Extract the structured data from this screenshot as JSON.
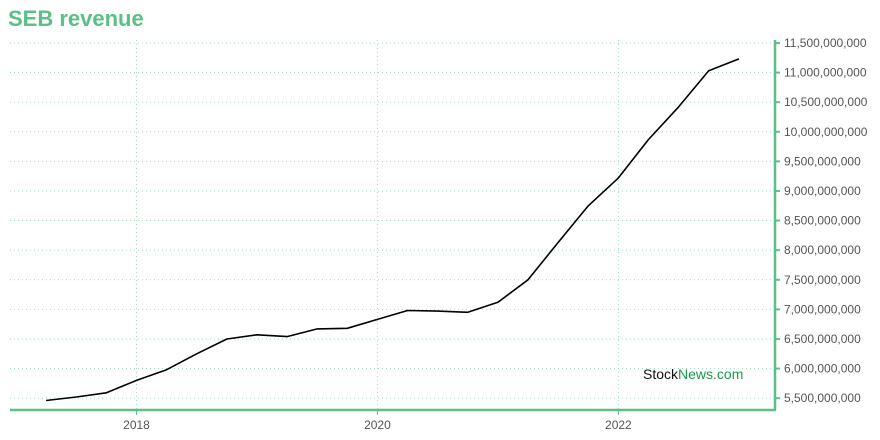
{
  "chart_data": {
    "type": "line",
    "title": "SEB revenue",
    "x_ticks": [
      "2018",
      "2020",
      "2022"
    ],
    "y_ticks": [
      "5,500,000,000",
      "6,000,000,000",
      "6,500,000,000",
      "7,000,000,000",
      "7,500,000,000",
      "8,000,000,000",
      "8,500,000,000",
      "9,000,000,000",
      "9,500,000,000",
      "10,000,000,000",
      "10,500,000,000",
      "11,000,000,000",
      "11,500,000,000"
    ],
    "ylim": [
      5300000000,
      11550000000
    ],
    "xlim": [
      2016.95,
      2023.3
    ],
    "series": [
      {
        "x": [
          2017.25,
          2017.5,
          2017.75,
          2018.0,
          2018.25,
          2018.5,
          2018.75,
          2019.0,
          2019.25,
          2019.5,
          2019.75,
          2020.0,
          2020.25,
          2020.5,
          2020.75,
          2021.0,
          2021.25,
          2021.5,
          2021.75,
          2022.0,
          2022.25,
          2022.5,
          2022.75,
          2023.0
        ],
        "values": [
          5460000000,
          5520000000,
          5590000000,
          5800000000,
          5980000000,
          6250000000,
          6500000000,
          6570000000,
          6540000000,
          6670000000,
          6680000000,
          6830000000,
          6980000000,
          6970000000,
          6950000000,
          7120000000,
          7500000000,
          8130000000,
          8750000000,
          9220000000,
          9870000000,
          10420000000,
          11030000000,
          11230000000
        ],
        "color": "#000000"
      }
    ],
    "grid": true,
    "y_axis_side": "right"
  },
  "watermark": {
    "part1": "Stock",
    "part2": "News.com"
  },
  "colors": {
    "title": "#5bbf88",
    "axis": "#5bbf88",
    "grid": "#a8d8c0",
    "line": "#000000",
    "watermark_accent": "#1a9a4a"
  }
}
